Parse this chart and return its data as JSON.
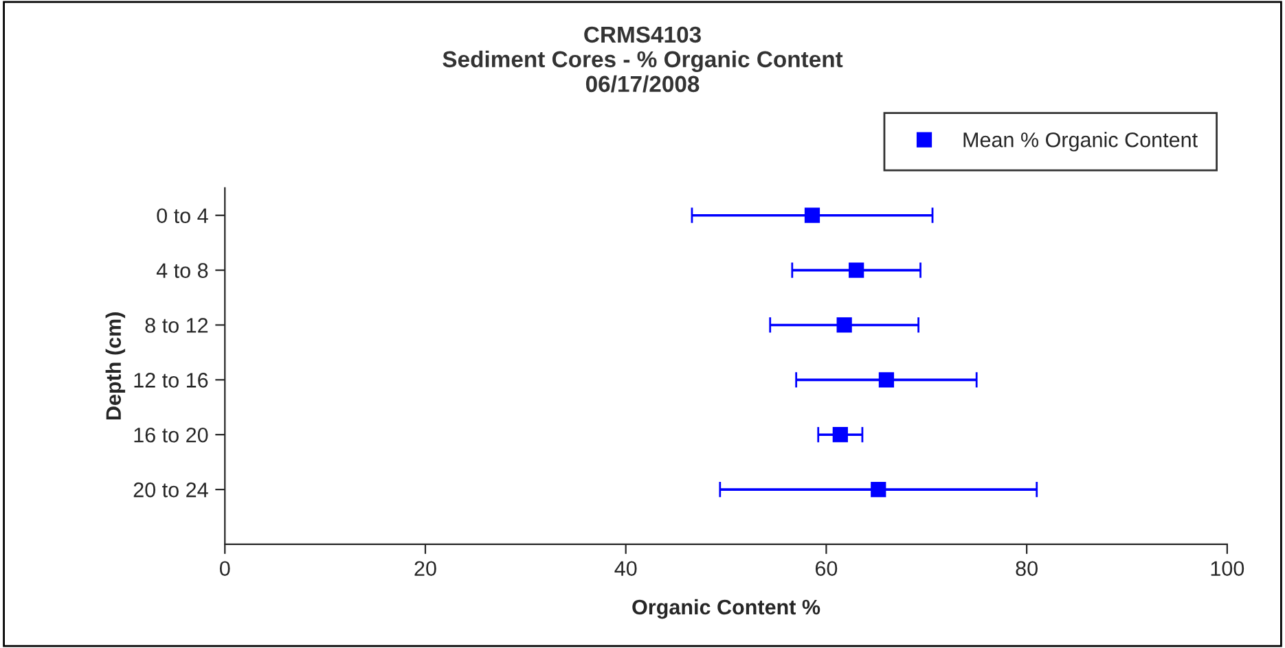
{
  "chart_data": {
    "type": "scatter",
    "orientation": "horizontal",
    "title": "CRMS4103\nSediment Cores - % Organic Content\n06/17/2008",
    "xlabel": "Organic Content %",
    "ylabel": "Depth (cm)",
    "categories": [
      "0 to 4",
      "4 to 8",
      "8 to 12",
      "12 to 16",
      "16 to 20",
      "20 to 24"
    ],
    "series": [
      {
        "name": "Mean % Organic Content",
        "color": "#0000ff",
        "values": [
          58.6,
          63.0,
          61.8,
          66.0,
          61.4,
          65.2
        ],
        "errors": [
          12.0,
          6.4,
          7.4,
          9.0,
          2.2,
          15.8
        ]
      }
    ],
    "xlim": [
      0,
      100
    ],
    "xticks": [
      0,
      20,
      40,
      60,
      80,
      100
    ],
    "marker": "square",
    "legend": "top right",
    "grid": false
  }
}
